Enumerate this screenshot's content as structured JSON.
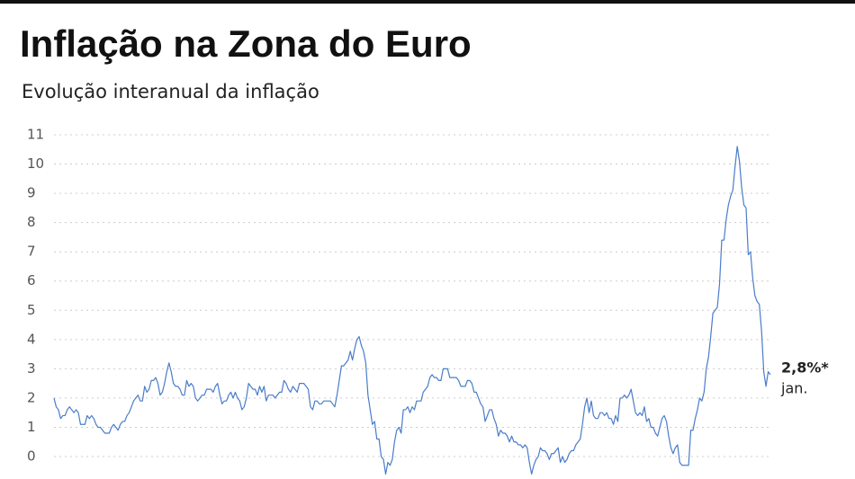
{
  "chart_data": {
    "type": "line",
    "title": "Inflação na Zona do Euro",
    "subtitle": "Evolução interanual da inflação",
    "values": [
      2.0,
      1.7,
      1.6,
      1.3,
      1.4,
      1.4,
      1.6,
      1.7,
      1.6,
      1.5,
      1.6,
      1.5,
      1.1,
      1.1,
      1.1,
      1.4,
      1.3,
      1.4,
      1.3,
      1.1,
      1.0,
      1.0,
      0.9,
      0.8,
      0.8,
      0.8,
      1.0,
      1.1,
      1.0,
      0.9,
      1.1,
      1.2,
      1.2,
      1.4,
      1.5,
      1.7,
      1.9,
      2.0,
      2.1,
      1.9,
      1.9,
      2.4,
      2.2,
      2.3,
      2.6,
      2.6,
      2.7,
      2.5,
      2.1,
      2.2,
      2.5,
      2.9,
      3.2,
      2.9,
      2.5,
      2.4,
      2.4,
      2.3,
      2.1,
      2.1,
      2.6,
      2.4,
      2.5,
      2.4,
      2.0,
      1.9,
      2.0,
      2.1,
      2.1,
      2.3,
      2.3,
      2.3,
      2.2,
      2.4,
      2.5,
      2.1,
      1.8,
      1.9,
      1.9,
      2.1,
      2.2,
      2.0,
      2.2,
      2.0,
      1.9,
      1.6,
      1.7,
      2.0,
      2.5,
      2.4,
      2.3,
      2.3,
      2.1,
      2.4,
      2.2,
      2.4,
      1.9,
      2.1,
      2.1,
      2.1,
      2.0,
      2.1,
      2.2,
      2.2,
      2.6,
      2.5,
      2.3,
      2.2,
      2.4,
      2.3,
      2.2,
      2.5,
      2.5,
      2.5,
      2.4,
      2.3,
      1.7,
      1.6,
      1.9,
      1.9,
      1.8,
      1.8,
      1.9,
      1.9,
      1.9,
      1.9,
      1.8,
      1.7,
      2.1,
      2.6,
      3.1,
      3.1,
      3.2,
      3.3,
      3.6,
      3.3,
      3.7,
      4.0,
      4.1,
      3.8,
      3.6,
      3.2,
      2.1,
      1.6,
      1.1,
      1.2,
      0.6,
      0.6,
      0.0,
      -0.1,
      -0.6,
      -0.2,
      -0.3,
      -0.1,
      0.5,
      0.9,
      1.0,
      0.8,
      1.6,
      1.6,
      1.7,
      1.5,
      1.7,
      1.6,
      1.9,
      1.9,
      1.9,
      2.2,
      2.3,
      2.4,
      2.7,
      2.8,
      2.7,
      2.7,
      2.6,
      2.6,
      3.0,
      3.0,
      3.0,
      2.7,
      2.7,
      2.7,
      2.7,
      2.6,
      2.4,
      2.4,
      2.4,
      2.6,
      2.6,
      2.5,
      2.2,
      2.2,
      2.0,
      1.8,
      1.7,
      1.2,
      1.4,
      1.6,
      1.6,
      1.3,
      1.1,
      0.7,
      0.9,
      0.8,
      0.8,
      0.7,
      0.5,
      0.7,
      0.5,
      0.5,
      0.4,
      0.4,
      0.3,
      0.4,
      0.3,
      -0.2,
      -0.6,
      -0.3,
      -0.1,
      0.0,
      0.3,
      0.2,
      0.2,
      0.1,
      -0.1,
      0.1,
      0.1,
      0.2,
      0.3,
      -0.2,
      0.0,
      -0.2,
      -0.1,
      0.1,
      0.2,
      0.2,
      0.4,
      0.5,
      0.6,
      1.1,
      1.7,
      2.0,
      1.5,
      1.9,
      1.4,
      1.3,
      1.3,
      1.5,
      1.5,
      1.4,
      1.5,
      1.3,
      1.3,
      1.1,
      1.4,
      1.2,
      2.0,
      2.0,
      2.1,
      2.0,
      2.1,
      2.3,
      1.9,
      1.5,
      1.4,
      1.5,
      1.4,
      1.7,
      1.2,
      1.3,
      1.0,
      1.0,
      0.8,
      0.7,
      1.0,
      1.3,
      1.4,
      1.2,
      0.7,
      0.3,
      0.1,
      0.3,
      0.4,
      -0.2,
      -0.3,
      -0.3,
      -0.3,
      -0.3,
      0.9,
      0.9,
      1.3,
      1.6,
      2.0,
      1.9,
      2.2,
      3.0,
      3.4,
      4.1,
      4.9,
      5.0,
      5.1,
      5.9,
      7.4,
      7.4,
      8.1,
      8.6,
      8.9,
      9.1,
      9.9,
      10.6,
      10.1,
      9.2,
      8.6,
      8.5,
      6.9,
      7.0,
      6.1,
      5.5,
      5.3,
      5.2,
      4.3,
      2.9,
      2.4,
      2.9,
      2.8
    ],
    "color": "#4a7cc9",
    "end_label": "2,8%*",
    "end_note": "jan.",
    "ylim": [
      -0.7,
      11
    ],
    "yticks": [
      0,
      1,
      2,
      3,
      4,
      5,
      6,
      7,
      8,
      9,
      10,
      11
    ],
    "grid": true
  }
}
